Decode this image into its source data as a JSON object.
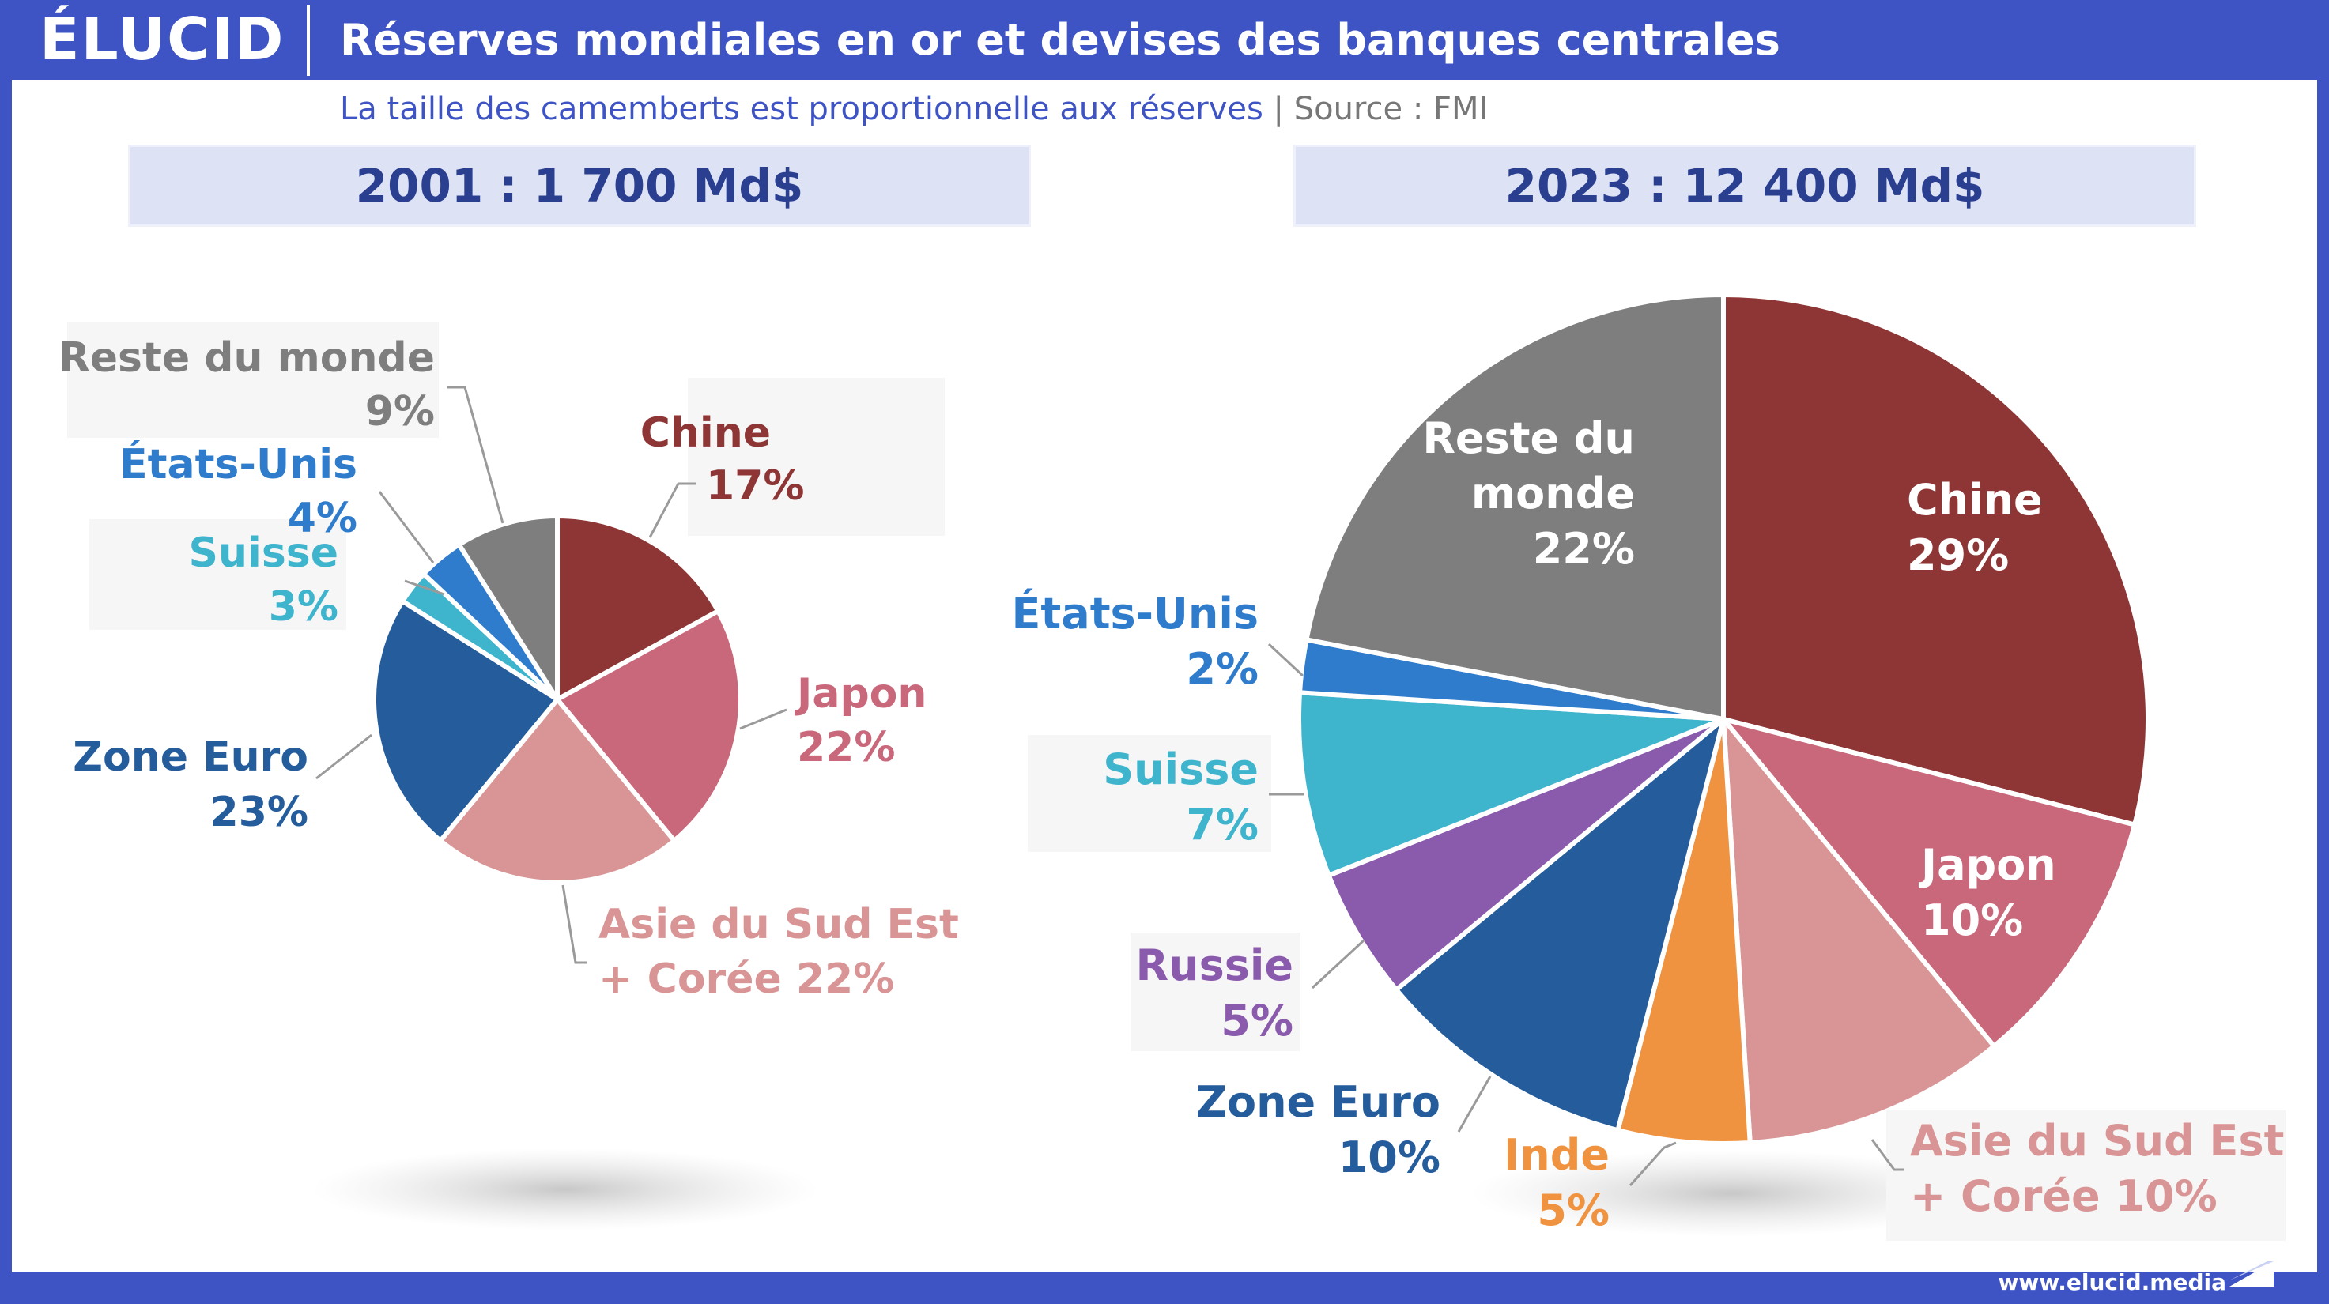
{
  "header": {
    "logo": "ÉLUCID",
    "title": "Réserves mondiales en or et devises des banques centrales",
    "subtitle": "La taille des camemberts est proportionnelle aux réserves",
    "separator": "|",
    "source": "Source : FMI"
  },
  "footer": {
    "url": "www.elucid.media"
  },
  "chart_data": [
    {
      "type": "pie",
      "title": "2001 : 1 700 Md$",
      "unit": "%",
      "slices": [
        {
          "label": "Chine",
          "value": 17,
          "label_text": "17%",
          "color": "#8e3535"
        },
        {
          "label": "Japon",
          "value": 22,
          "label_text": "22%",
          "color": "#c9677b"
        },
        {
          "label": "Asie du Sud Est",
          "label2": "+ Corée",
          "value": 22,
          "label_text": "22%",
          "color": "#d99595"
        },
        {
          "label": "Zone Euro",
          "value": 23,
          "label_text": "23%",
          "color": "#245c9c"
        },
        {
          "label": "Suisse",
          "value": 3,
          "label_text": "3%",
          "color": "#3eb4cd"
        },
        {
          "label": "États-Unis",
          "value": 4,
          "label_text": "4%",
          "color": "#2f7ccc"
        },
        {
          "label": "Reste du monde",
          "value": 9,
          "label_text": "9%",
          "color": "#7e7e7e"
        }
      ]
    },
    {
      "type": "pie",
      "title": "2023 : 12 400 Md$",
      "unit": "%",
      "slices": [
        {
          "label": "Chine",
          "value": 29,
          "label_text": "29%",
          "color": "#8e3535"
        },
        {
          "label": "Japon",
          "value": 10,
          "label_text": "10%",
          "color": "#c9677b"
        },
        {
          "label": "Asie du Sud Est",
          "label2": "+ Corée",
          "value": 10,
          "label_text": "10%",
          "color": "#d99595"
        },
        {
          "label": "Inde",
          "value": 5,
          "label_text": "5%",
          "color": "#ef9340"
        },
        {
          "label": "Zone Euro",
          "value": 10,
          "label_text": "10%",
          "color": "#245c9c"
        },
        {
          "label": "Russie",
          "value": 5,
          "label_text": "5%",
          "color": "#8a5aad"
        },
        {
          "label": "Suisse",
          "value": 7,
          "label_text": "7%",
          "color": "#3eb4cd"
        },
        {
          "label": "États-Unis",
          "value": 2,
          "label_text": "2%",
          "color": "#2f7ccc"
        },
        {
          "label": "Reste du",
          "label2": "monde",
          "value": 22,
          "label_text": "22%",
          "color": "#7e7e7e"
        }
      ]
    }
  ]
}
